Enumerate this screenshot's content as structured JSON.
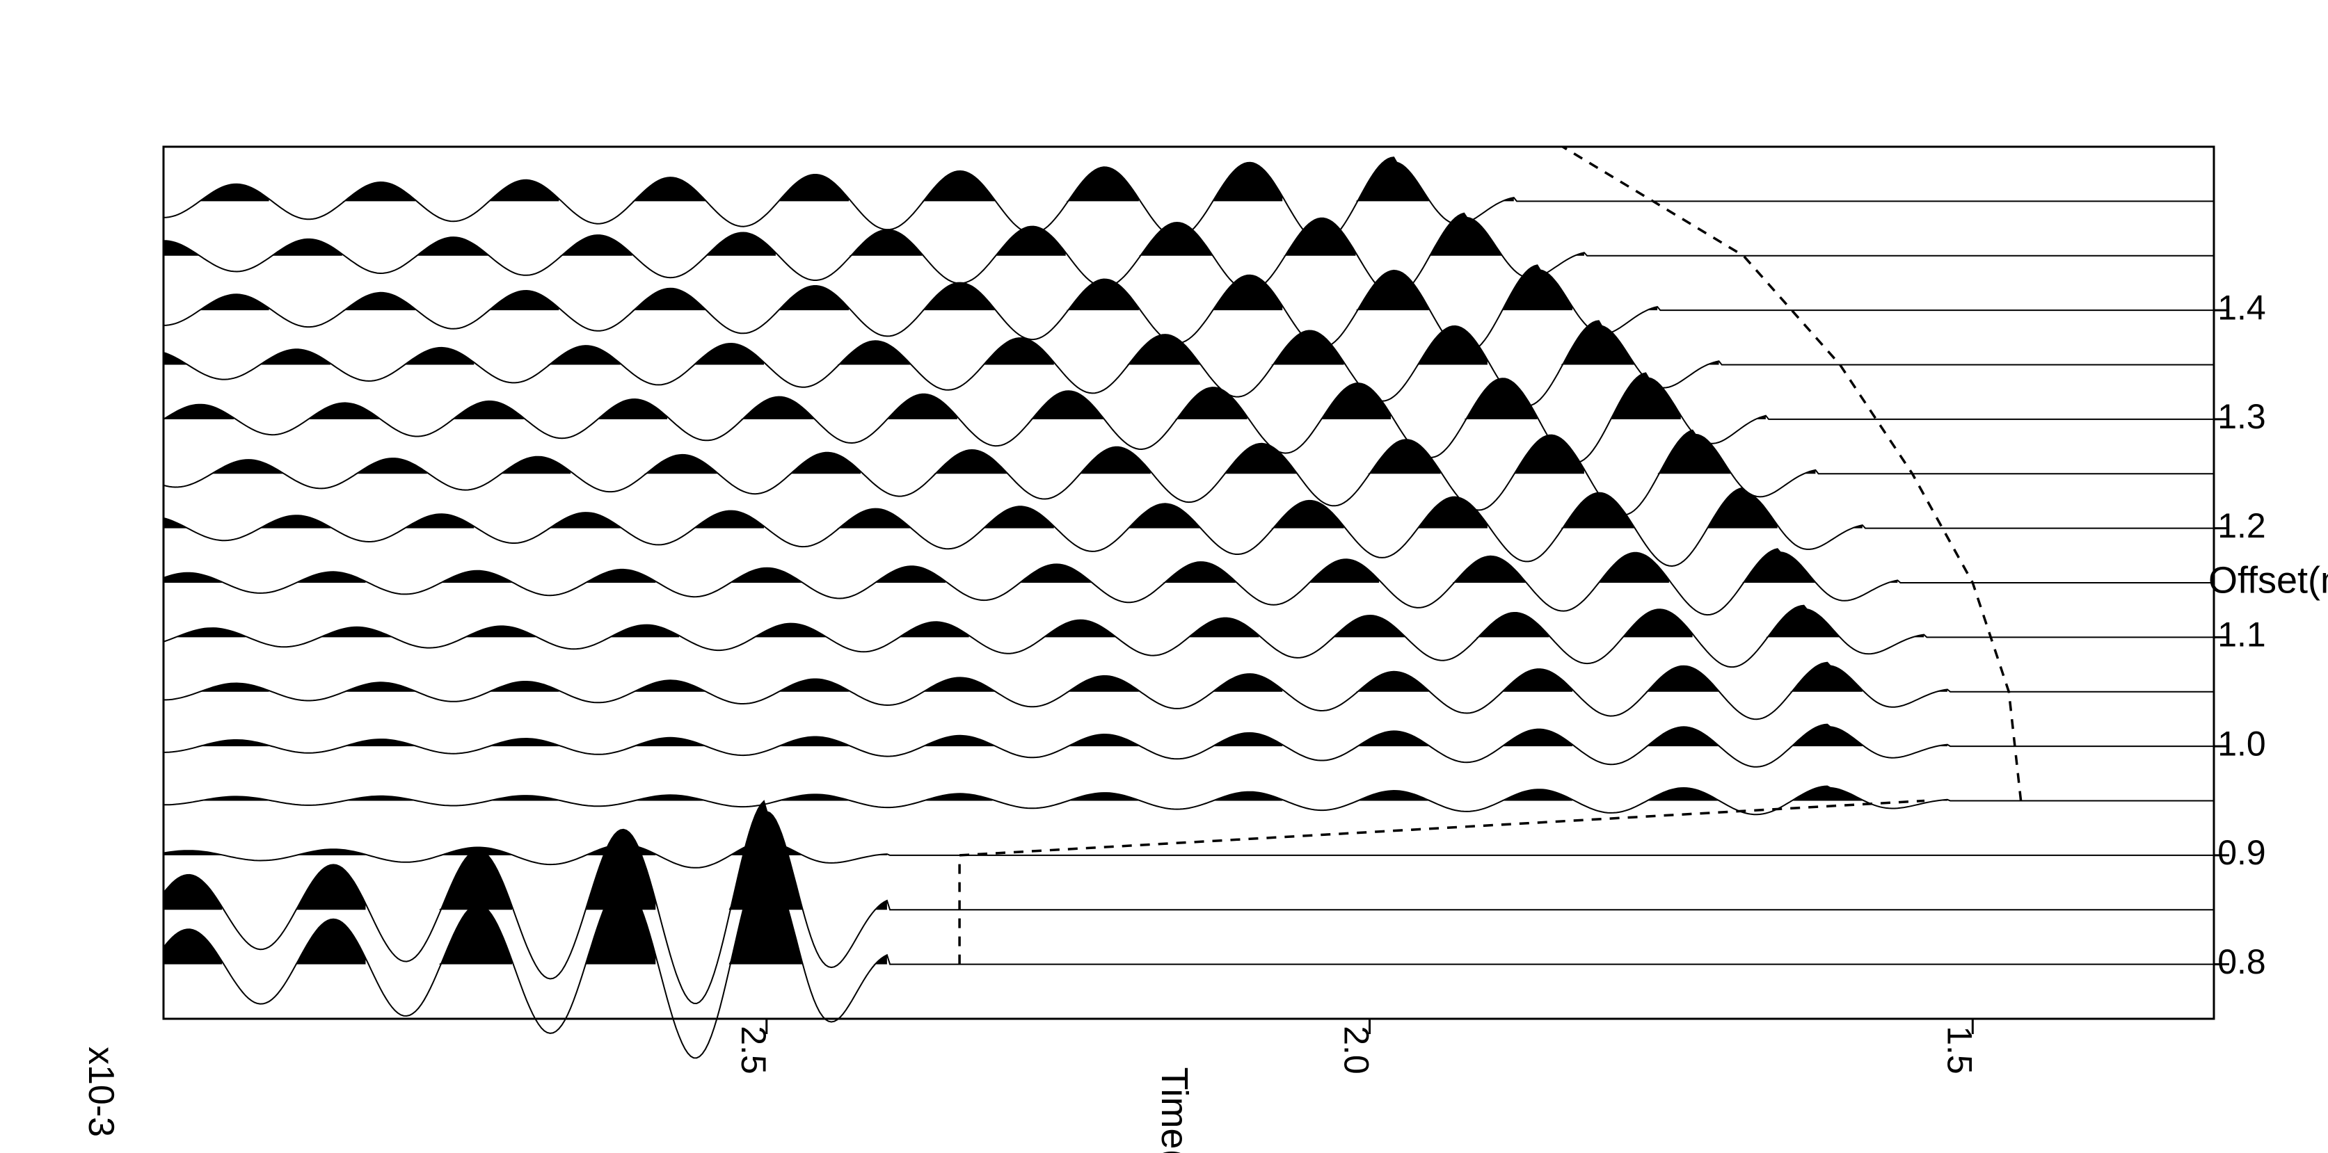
{
  "chart_data": {
    "type": "seismic-wiggle",
    "xlabel": "Offset(m)",
    "ylabel": "Time(s)",
    "y_exponent_label": "x10-3",
    "x_axis_position": "top",
    "y_axis_reversed": true,
    "xlim": [
      0.75,
      1.55
    ],
    "ylim": [
      1.3,
      3.0
    ],
    "x_ticks": [
      {
        "value": 0.8,
        "label": "0.8"
      },
      {
        "value": 0.9,
        "label": "0.9"
      },
      {
        "value": 1.0,
        "label": "1.0"
      },
      {
        "value": 1.1,
        "label": "1.1"
      },
      {
        "value": 1.2,
        "label": "1.2"
      },
      {
        "value": 1.3,
        "label": "1.3"
      },
      {
        "value": 1.4,
        "label": "1.4"
      }
    ],
    "y_ticks": [
      {
        "value": 1.5,
        "label": "1.5"
      },
      {
        "value": 2.0,
        "label": "2.0"
      },
      {
        "value": 2.5,
        "label": "2.5"
      }
    ],
    "grid": false,
    "trace_fill": "positive lobes filled black",
    "traces": [
      {
        "offset": 0.8,
        "arrival": 2.5,
        "amplitude": 0.09,
        "decay": 3.0
      },
      {
        "offset": 0.85,
        "arrival": 2.5,
        "amplitude": 0.09,
        "decay": 3.0
      },
      {
        "offset": 0.9,
        "arrival": 2.5,
        "amplitude": 0.012,
        "decay": 3.0
      },
      {
        "offset": 0.95,
        "arrival": 1.62,
        "amplitude": 0.012,
        "decay": 1.2
      },
      {
        "offset": 1.0,
        "arrival": 1.62,
        "amplitude": 0.018,
        "decay": 1.2
      },
      {
        "offset": 1.05,
        "arrival": 1.62,
        "amplitude": 0.024,
        "decay": 1.2
      },
      {
        "offset": 1.1,
        "arrival": 1.64,
        "amplitude": 0.026,
        "decay": 1.2
      },
      {
        "offset": 1.15,
        "arrival": 1.66,
        "amplitude": 0.028,
        "decay": 1.2
      },
      {
        "offset": 1.2,
        "arrival": 1.69,
        "amplitude": 0.033,
        "decay": 1.2
      },
      {
        "offset": 1.25,
        "arrival": 1.73,
        "amplitude": 0.036,
        "decay": 1.2
      },
      {
        "offset": 1.3,
        "arrival": 1.77,
        "amplitude": 0.038,
        "decay": 1.2
      },
      {
        "offset": 1.35,
        "arrival": 1.81,
        "amplitude": 0.036,
        "decay": 1.2
      },
      {
        "offset": 1.4,
        "arrival": 1.86,
        "amplitude": 0.037,
        "decay": 1.2
      },
      {
        "offset": 1.45,
        "arrival": 1.92,
        "amplitude": 0.035,
        "decay": 1.2
      },
      {
        "offset": 1.5,
        "arrival": 1.98,
        "amplitude": 0.036,
        "decay": 1.2
      }
    ],
    "dashed_curves": [
      {
        "name": "",
        "x": [
          0.8,
          0.9
        ],
        "y": [
          2.34,
          2.34
        ]
      },
      {
        "name": "",
        "x": [
          0.9,
          0.95
        ],
        "y": [
          2.34,
          1.54
        ]
      },
      {
        "name": "",
        "x": [
          0.95,
          1.05,
          1.15,
          1.25,
          1.35,
          1.45,
          1.55
        ],
        "y": [
          1.46,
          1.47,
          1.5,
          1.55,
          1.61,
          1.69,
          1.84
        ]
      }
    ]
  }
}
